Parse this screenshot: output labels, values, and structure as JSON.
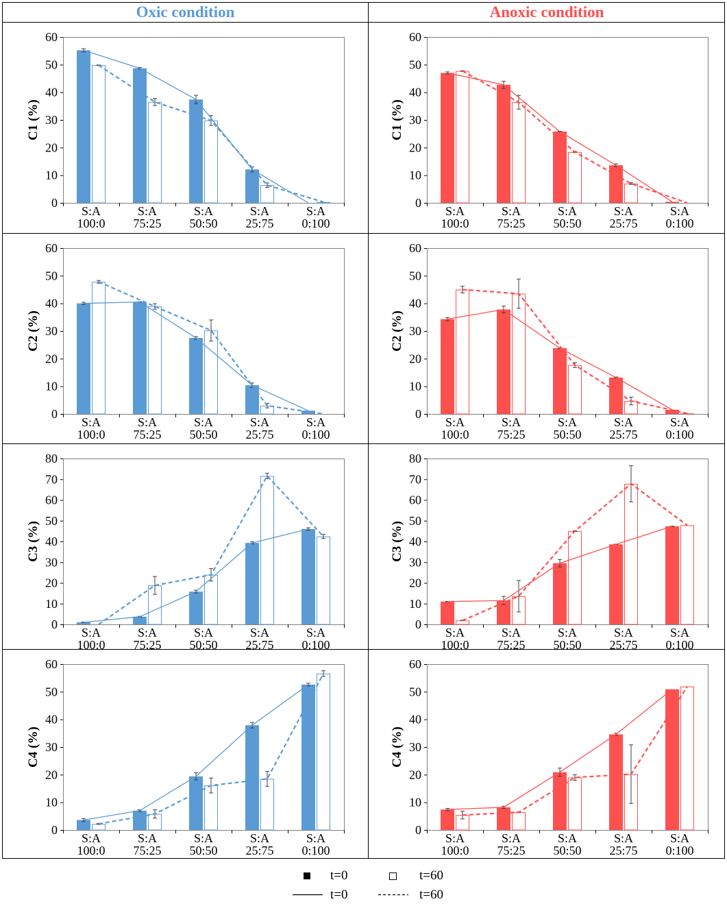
{
  "headers": {
    "oxic": "Oxic condition",
    "anoxic": "Anoxic condition"
  },
  "colors": {
    "oxic": "#5b9bd5",
    "anoxic": "#ff5050",
    "oxic_header": "#5b9bd5",
    "anoxic_header": "#ff5050"
  },
  "legend": {
    "bar_t0": "t=0",
    "bar_t60": "t=60",
    "line_t0": "t=0",
    "line_t60": "t=60"
  },
  "chart_data": [
    {
      "type": "bar",
      "condition": "oxic",
      "ylabel": "C1 (%)",
      "ylim": [
        0,
        60
      ],
      "yticks": [
        0,
        10,
        20,
        30,
        40,
        50,
        60
      ],
      "categories": [
        "S:A 100:0",
        "S:A 75:25",
        "S:A 50:50",
        "S:A 25:75",
        "S:A 0:100"
      ],
      "series": [
        {
          "name": "t=0",
          "values": [
            55.2,
            48.7,
            37.4,
            12.1,
            0
          ],
          "errors": [
            0.6,
            0.3,
            1.5,
            0.9,
            0
          ]
        },
        {
          "name": "t=60",
          "values": [
            49.8,
            36.5,
            29.8,
            6.4,
            0.3
          ],
          "errors": [
            0.1,
            1.3,
            1.8,
            0.8,
            0
          ]
        }
      ]
    },
    {
      "type": "bar",
      "condition": "anoxic",
      "ylabel": "C1 (%)",
      "ylim": [
        0,
        60
      ],
      "yticks": [
        0,
        10,
        20,
        30,
        40,
        50,
        60
      ],
      "categories": [
        "S:A 100:0",
        "S:A 75:25",
        "S:A 50:50",
        "S:A 25:75",
        "S:A 0:100"
      ],
      "series": [
        {
          "name": "t=0",
          "values": [
            47.0,
            42.7,
            25.8,
            13.6,
            0.4
          ],
          "errors": [
            0.4,
            1.3,
            0.1,
            0.5,
            0
          ]
        },
        {
          "name": "t=60",
          "values": [
            47.7,
            36.4,
            18.4,
            7.0,
            0
          ],
          "errors": [
            0.1,
            2.5,
            0.2,
            0.3,
            0
          ]
        }
      ]
    },
    {
      "type": "bar",
      "condition": "oxic",
      "ylabel": "C2 (%)",
      "ylim": [
        0,
        60
      ],
      "yticks": [
        0,
        10,
        20,
        30,
        40,
        50,
        60
      ],
      "categories": [
        "S:A 100:0",
        "S:A 75:25",
        "S:A 50:50",
        "S:A 25:75",
        "S:A 0:100"
      ],
      "series": [
        {
          "name": "t=0",
          "values": [
            40.0,
            40.5,
            27.5,
            10.4,
            1.2
          ],
          "errors": [
            0.4,
            0.1,
            0.5,
            0.8,
            0
          ]
        },
        {
          "name": "t=60",
          "values": [
            47.8,
            38.9,
            30.2,
            3.0,
            0
          ],
          "errors": [
            0.5,
            1.0,
            3.8,
            0.8,
            0
          ]
        }
      ]
    },
    {
      "type": "bar",
      "condition": "anoxic",
      "ylabel": "C2 (%)",
      "ylim": [
        0,
        60
      ],
      "yticks": [
        0,
        10,
        20,
        30,
        40,
        50,
        60
      ],
      "categories": [
        "S:A 100:0",
        "S:A 75:25",
        "S:A 50:50",
        "S:A 25:75",
        "S:A 0:100"
      ],
      "series": [
        {
          "name": "t=0",
          "values": [
            34.3,
            37.8,
            23.8,
            13.2,
            1.5
          ],
          "errors": [
            0.6,
            1.2,
            0.2,
            0.2,
            0
          ]
        },
        {
          "name": "t=60",
          "values": [
            45.0,
            43.5,
            17.7,
            4.7,
            0.2
          ],
          "errors": [
            1.2,
            5.3,
            0.9,
            1.4,
            0
          ]
        }
      ]
    },
    {
      "type": "bar",
      "condition": "oxic",
      "ylabel": "C3 (%)",
      "ylim": [
        0,
        80
      ],
      "yticks": [
        0,
        10,
        20,
        30,
        40,
        50,
        60,
        70,
        80
      ],
      "categories": [
        "S:A 100:0",
        "S:A 75:25",
        "S:A 50:50",
        "S:A 25:75",
        "S:A 0:100"
      ],
      "series": [
        {
          "name": "t=0",
          "values": [
            1.0,
            3.7,
            15.8,
            39.3,
            46.0
          ],
          "errors": [
            0.1,
            0.2,
            0.7,
            0.5,
            0.6
          ]
        },
        {
          "name": "t=60",
          "values": [
            0,
            18.8,
            23.9,
            71.6,
            42.4
          ],
          "errors": [
            0,
            4.3,
            3.0,
            1.3,
            1.0
          ]
        }
      ]
    },
    {
      "type": "bar",
      "condition": "anoxic",
      "ylabel": "C3 (%)",
      "ylim": [
        0,
        80
      ],
      "yticks": [
        0,
        10,
        20,
        30,
        40,
        50,
        60,
        70,
        80
      ],
      "categories": [
        "S:A 100:0",
        "S:A 75:25",
        "S:A 50:50",
        "S:A 25:75",
        "S:A 0:100"
      ],
      "series": [
        {
          "name": "t=0",
          "values": [
            11.0,
            11.5,
            29.5,
            38.6,
            47.3
          ],
          "errors": [
            0.1,
            2.0,
            1.8,
            0.1,
            0.1
          ]
        },
        {
          "name": "t=60",
          "values": [
            1.9,
            13.6,
            45.0,
            67.8,
            47.8
          ],
          "errors": [
            0.1,
            7.6,
            0.2,
            8.7,
            0
          ]
        }
      ]
    },
    {
      "type": "bar",
      "condition": "oxic",
      "ylabel": "C4 (%)",
      "ylim": [
        0,
        60
      ],
      "yticks": [
        0,
        10,
        20,
        30,
        40,
        50,
        60
      ],
      "categories": [
        "S:A 100:0",
        "S:A 75:25",
        "S:A 50:50",
        "S:A 25:75",
        "S:A 0:100"
      ],
      "series": [
        {
          "name": "t=0",
          "values": [
            3.6,
            7.0,
            19.4,
            37.9,
            52.6
          ],
          "errors": [
            0.5,
            0.3,
            1.3,
            1.0,
            0.5
          ]
        },
        {
          "name": "t=60",
          "values": [
            2.2,
            5.8,
            16.1,
            18.5,
            56.6
          ],
          "errors": [
            0.2,
            1.5,
            2.7,
            2.7,
            1.0
          ]
        }
      ]
    },
    {
      "type": "bar",
      "condition": "anoxic",
      "ylabel": "C4 (%)",
      "ylim": [
        0,
        60
      ],
      "yticks": [
        0,
        10,
        20,
        30,
        40,
        50,
        60
      ],
      "categories": [
        "S:A 100:0",
        "S:A 75:25",
        "S:A 50:50",
        "S:A 25:75",
        "S:A 0:100"
      ],
      "series": [
        {
          "name": "t=0",
          "values": [
            7.4,
            8.2,
            20.9,
            34.6,
            50.9
          ],
          "errors": [
            0.4,
            0.4,
            1.5,
            0.4,
            0
          ]
        },
        {
          "name": "t=60",
          "values": [
            5.4,
            6.4,
            19.0,
            20.2,
            51.9
          ],
          "errors": [
            1.4,
            0.1,
            1.0,
            10.6,
            0
          ]
        }
      ]
    }
  ]
}
